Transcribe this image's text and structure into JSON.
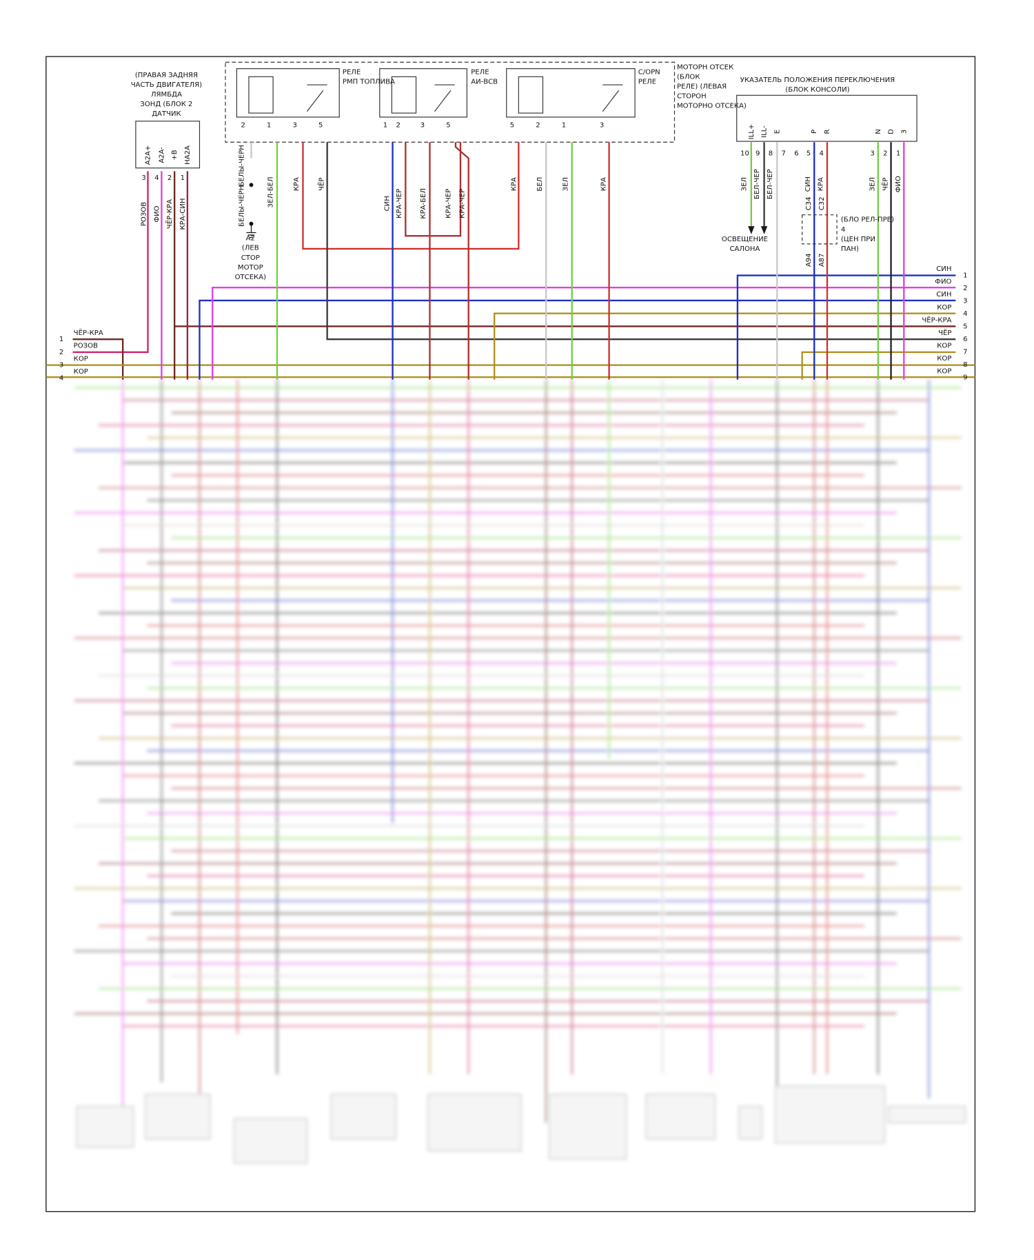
{
  "lambda_sensor": {
    "label": [
      "(ПРАВАЯ ЗАДНЯЯ",
      "ЧАСТЬ ДВИГАТЕЛЯ)",
      "ЛЯМБДА",
      "ЗОНД (БЛОК 2",
      "ДАТЧИК"
    ],
    "pins": [
      "A2A+",
      "A2A-",
      "+B",
      "НА2А"
    ],
    "pin_numbers": [
      "3",
      "4",
      "2",
      "1"
    ],
    "wires": [
      "РОЗОВ",
      "ФИО",
      "ЧЁР-КРА",
      "КРА-СИН"
    ]
  },
  "engine_relay_block": {
    "label": [
      "МОТОРН ОТСЕК",
      "(БЛОК",
      "РЕЛЕ) (ЛЕВАЯ",
      "СТОРОН",
      "МОТОРНО ОТСЕКА)"
    ]
  },
  "fuel_pump_relay": {
    "label": [
      "РЕЛЕ",
      "РМП ТОПЛИВА"
    ],
    "pin_numbers": [
      "2",
      "1",
      "3",
      "5"
    ],
    "wires": [
      "БЕЛЫ-ЧЕРН",
      "ЗЕЛ-БЕЛ",
      "КРА",
      "ЧЁР"
    ]
  },
  "ai_relay": {
    "label": [
      "РЕЛЕ",
      "АИ-ВСВ"
    ],
    "pin_numbers": [
      "1",
      "2",
      "3",
      "5"
    ],
    "wires": [
      "СИН",
      "КРА-ЧЕР",
      "КРА-БЕЛ",
      "КРА-ЧЕР",
      "КРА-ЧЕР"
    ]
  },
  "copn_relay": {
    "label": [
      "C/OPN",
      "РЕЛЕ"
    ],
    "pin_numbers": [
      "5",
      "2",
      "1",
      "3"
    ],
    "wires": [
      "КРА",
      "БЕЛ",
      "ЗЕЛ",
      "КРА"
    ]
  },
  "ground_a2": {
    "wire": "БЕЛЫ-ЧЕРН",
    "label": [
      "A2",
      "(ЛЕВ",
      "СТОР",
      "МОТОР",
      "ОТСЕКА)"
    ]
  },
  "shift_indicator": {
    "label": [
      "УКАЗАТЕЛЬ ПОЛОЖЕНИЯ ПЕРЕКЛЮЧЕНИЯ",
      "(БЛОК КОНСОЛИ)"
    ],
    "pins": [
      "ILL+",
      "ILL-",
      "E",
      "P",
      "R",
      "N",
      "D",
      "3"
    ],
    "pin_numbers": [
      "10",
      "9",
      "8",
      "7",
      "6",
      "5",
      "4",
      "3",
      "2",
      "1"
    ],
    "wires": [
      "ЗЕЛ",
      "БЕЛ-ЧЕР",
      "БЕЛ-ЧЕР",
      "СИН",
      "КРА",
      "ЗЕЛ",
      "ЧЁР",
      "ФИО"
    ]
  },
  "interior_lighting": {
    "label": [
      "ОСВЕЩЕНИЕ",
      "САЛОНА"
    ]
  },
  "junction": {
    "connectors": [
      "C34",
      "C32"
    ],
    "label": [
      "(БЛО РЕЛ-ПРЕ)",
      "4",
      "(ЦЕН ПРИ",
      "ПАН)"
    ],
    "terminals": [
      "A94",
      "A87"
    ]
  },
  "left_bus": [
    {
      "number": "1",
      "wire": "ЧЁР-КРА"
    },
    {
      "number": "2",
      "wire": "РОЗОВ"
    },
    {
      "number": "3",
      "wire": "КОР"
    },
    {
      "number": "4",
      "wire": "КОР"
    }
  ],
  "right_bus": [
    {
      "number": "1",
      "wire": "СИН"
    },
    {
      "number": "2",
      "wire": "ФИО"
    },
    {
      "number": "3",
      "wire": "СИН"
    },
    {
      "number": "4",
      "wire": "КОР"
    },
    {
      "number": "5",
      "wire": "ЧЁР-КРА"
    },
    {
      "number": "6",
      "wire": "ЧЁР"
    },
    {
      "number": "7",
      "wire": "КОР"
    },
    {
      "number": "8",
      "wire": "КОР"
    },
    {
      "number": "9",
      "wire": "КОР"
    }
  ]
}
